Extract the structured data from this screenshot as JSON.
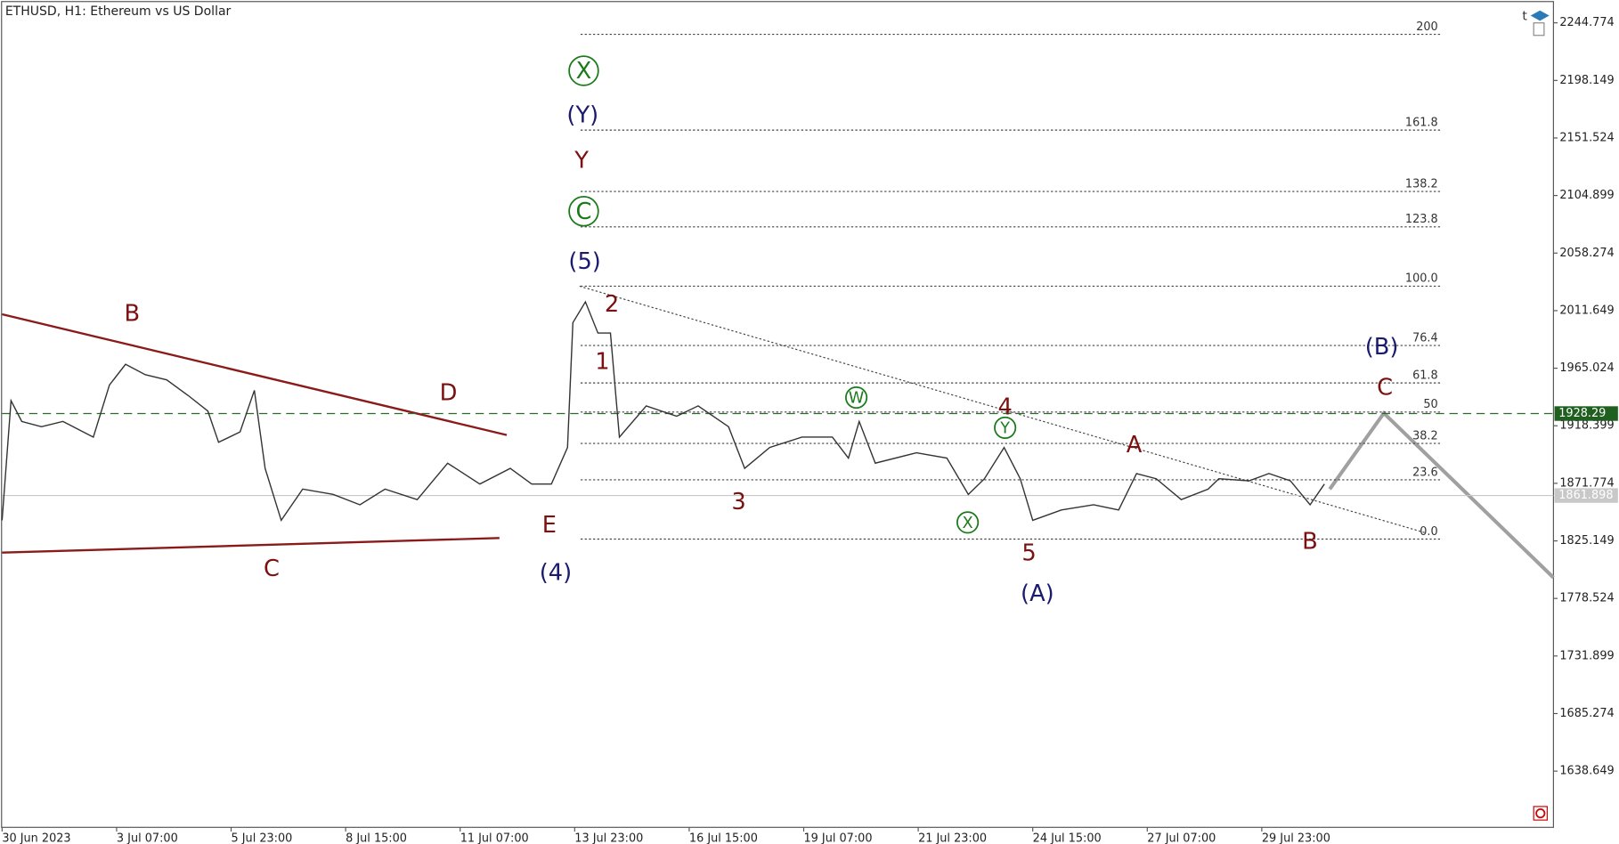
{
  "chart_data": {
    "type": "line",
    "title": "ETHUSD, H1:  Ethereum vs US Dollar",
    "xlim": [
      15,
      882
    ],
    "xticks": [
      {
        "value": 15,
        "label": "30 Jun 2023"
      },
      {
        "value": 79,
        "label": "3 Jul 07:00"
      },
      {
        "value": 143,
        "label": "5 Jul 23:00"
      },
      {
        "value": 207,
        "label": "8 Jul 15:00"
      },
      {
        "value": 271,
        "label": "11 Jul 07:00"
      },
      {
        "value": 335,
        "label": "13 Jul 23:00"
      },
      {
        "value": 399,
        "label": "16 Jul 15:00"
      },
      {
        "value": 463,
        "label": "19 Jul 07:00"
      },
      {
        "value": 527,
        "label": "21 Jul 23:00"
      },
      {
        "value": 591,
        "label": "24 Jul 15:00"
      },
      {
        "value": 655,
        "label": "27 Jul 07:00"
      },
      {
        "value": 719,
        "label": "29 Jul 23:00"
      }
    ],
    "ylim": [
      1593.1,
      2261.6
    ],
    "yticks": [
      2244.774,
      2198.149,
      2151.524,
      2104.899,
      2058.274,
      2011.649,
      1965.024,
      1918.399,
      1871.774,
      1825.149,
      1778.524,
      1731.899,
      1685.274,
      1638.649
    ],
    "series": [
      {
        "name": "ETHUSD",
        "color": "#333333",
        "x": [
          15,
          20,
          26,
          37,
          49,
          66,
          75,
          84,
          95,
          107,
          119,
          130,
          136,
          148,
          156,
          162,
          171,
          183,
          200,
          215,
          229,
          247,
          264,
          282,
          299,
          311,
          322,
          331,
          334,
          341,
          348,
          355,
          360,
          375,
          392,
          404,
          421,
          430,
          444,
          462,
          479,
          488,
          494,
          503,
          526,
          543,
          555,
          564,
          575,
          584,
          591,
          607,
          625,
          639,
          649,
          660,
          674,
          689,
          695,
          712,
          723,
          735,
          746,
          754
        ],
        "values": [
          1841.8,
          1938.7,
          1921.9,
          1917.6,
          1921.9,
          1909.2,
          1951.4,
          1968.2,
          1959.8,
          1955.6,
          1942.9,
          1930.3,
          1905.0,
          1913.4,
          1947.1,
          1883.9,
          1841.8,
          1867.1,
          1862.8,
          1854.4,
          1867.1,
          1858.6,
          1888.1,
          1871.2,
          1883.9,
          1871.2,
          1871.2,
          1900.8,
          2001.9,
          2018.8,
          1993.5,
          1993.5,
          1909.2,
          1934.5,
          1926.1,
          1934.5,
          1917.6,
          1883.9,
          1900.8,
          1909.2,
          1909.2,
          1892.2,
          1921.9,
          1888.1,
          1896.5,
          1892.2,
          1862.8,
          1875.5,
          1900.8,
          1875.5,
          1841.8,
          1850.2,
          1854.4,
          1850.2,
          1879.7,
          1875.5,
          1858.6,
          1867.1,
          1875.5,
          1873.8,
          1879.7,
          1873.8,
          1854.4,
          1871.2
        ]
      }
    ],
    "fib_levels": [
      {
        "label": "200",
        "price": 2235.5
      },
      {
        "label": "161.8",
        "price": 2157.9
      },
      {
        "label": "138.2",
        "price": 2108.2
      },
      {
        "label": "123.8",
        "price": 2079.5
      },
      {
        "label": "100.0",
        "price": 2031.5
      },
      {
        "label": "76.4",
        "price": 1983.4
      },
      {
        "label": "61.8",
        "price": 1953.1
      },
      {
        "label": "50",
        "price": 1929.5
      },
      {
        "label": "38.2",
        "price": 1904.1
      },
      {
        "label": "23.6",
        "price": 1874.6
      },
      {
        "label": "0.0",
        "price": 1826.6
      }
    ],
    "marked_level": 1928.29,
    "current_price": 1861.898,
    "annotations": [
      {
        "text": "B",
        "color": "#7b1010"
      },
      {
        "text": "D",
        "color": "#7b1010"
      },
      {
        "text": "C",
        "color": "#7b1010"
      },
      {
        "text": "E",
        "color": "#7b1010"
      },
      {
        "text": "(4)",
        "color": "#1a1a6e"
      },
      {
        "text": "(5)",
        "color": "#1a1a6e"
      },
      {
        "text": "C",
        "color": "#1a7a1a",
        "circled": true
      },
      {
        "text": "Y",
        "color": "#7b1010"
      },
      {
        "text": "(Y)",
        "color": "#1a1a6e"
      },
      {
        "text": "X",
        "color": "#1a7a1a",
        "circled": true
      },
      {
        "text": "2",
        "color": "#7b1010"
      },
      {
        "text": "1",
        "color": "#7b1010"
      },
      {
        "text": "3",
        "color": "#7b1010"
      },
      {
        "text": "W",
        "color": "#1a7a1a",
        "circled": true
      },
      {
        "text": "4",
        "color": "#7b1010"
      },
      {
        "text": "Y",
        "color": "#1a7a1a",
        "circled": true
      },
      {
        "text": "X",
        "color": "#1a7a1a",
        "circled": true
      },
      {
        "text": "5",
        "color": "#7b1010"
      },
      {
        "text": "(A)",
        "color": "#1a1a6e"
      },
      {
        "text": "A",
        "color": "#7b1010"
      },
      {
        "text": "B",
        "color": "#7b1010"
      },
      {
        "text": "(B)",
        "color": "#1a1a6e"
      },
      {
        "text": "C",
        "color": "#7b1010"
      }
    ]
  }
}
